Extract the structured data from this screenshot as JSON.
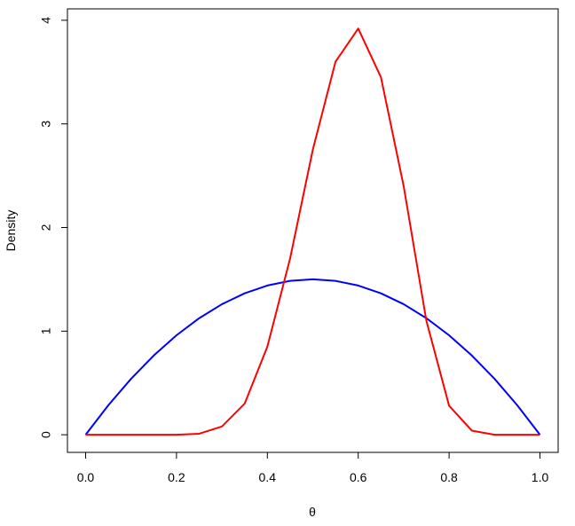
{
  "chart_data": {
    "type": "line",
    "x_label": "θ",
    "y_label": "Density",
    "x": [
      0,
      0.05,
      0.1,
      0.15,
      0.2,
      0.25,
      0.3,
      0.35,
      0.4,
      0.45,
      0.5,
      0.55,
      0.6,
      0.65,
      0.7,
      0.75,
      0.8,
      0.85,
      0.9,
      0.95,
      1
    ],
    "series": [
      {
        "color": "#0000ff",
        "values": [
          0,
          0.285,
          0.54,
          0.765,
          0.96,
          1.125,
          1.26,
          1.365,
          1.44,
          1.485,
          1.5,
          1.485,
          1.44,
          1.365,
          1.26,
          1.125,
          0.96,
          0.765,
          0.54,
          0.285,
          0
        ]
      },
      {
        "color": "#ff0000",
        "values": [
          0,
          0,
          0,
          0,
          0,
          0.01,
          0.08,
          0.3,
          0.85,
          1.7,
          2.75,
          3.6,
          3.92,
          3.45,
          2.4,
          1.1,
          0.28,
          0.04,
          0,
          0,
          0
        ]
      }
    ],
    "xlim": [
      -0.04,
      1.04
    ],
    "ylim": [
      -0.17,
      4.11
    ],
    "xticks": [
      {
        "value": 0,
        "label": "0.0"
      },
      0.2,
      0.4,
      0.6,
      0.8,
      {
        "value": 1,
        "label": "1.0"
      }
    ],
    "yticks": [
      0,
      1,
      2,
      3,
      4
    ]
  }
}
